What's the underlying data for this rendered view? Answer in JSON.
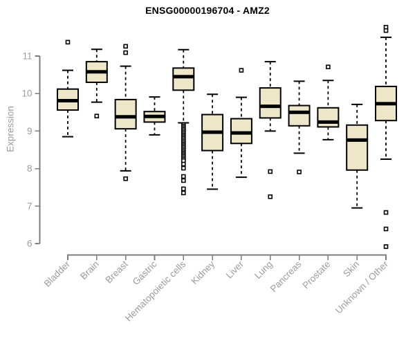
{
  "chart_data": {
    "type": "box",
    "title": "ENSG00000196704 - AMZ2",
    "ylabel": "Expression",
    "xlabel": "",
    "y_ticks": [
      6,
      7,
      8,
      9,
      10,
      11
    ],
    "ylim": [
      5.8,
      11.9
    ],
    "grid": "off",
    "legend": "none",
    "categories": [
      "Bladder",
      "Brain",
      "Breast",
      "Gastric",
      "Hematopoietic cells",
      "Kidney",
      "Liver",
      "Lung",
      "Pancreas",
      "Prostate",
      "Skin",
      "Unknown / Other"
    ],
    "series": [
      {
        "name": "Bladder",
        "whisker_low": 8.85,
        "q1": 9.56,
        "median": 9.81,
        "q3": 10.12,
        "whisker_high": 10.62,
        "outliers": [
          11.37
        ]
      },
      {
        "name": "Brain",
        "whisker_low": 9.77,
        "q1": 10.3,
        "median": 10.58,
        "q3": 10.85,
        "whisker_high": 11.18,
        "outliers": [
          9.4
        ]
      },
      {
        "name": "Breast",
        "whisker_low": 7.94,
        "q1": 9.06,
        "median": 9.38,
        "q3": 9.84,
        "whisker_high": 10.73,
        "outliers": [
          11.26,
          11.09,
          7.73
        ]
      },
      {
        "name": "Gastric",
        "whisker_low": 8.9,
        "q1": 9.24,
        "median": 9.39,
        "q3": 9.52,
        "whisker_high": 9.91,
        "outliers": []
      },
      {
        "name": "Hematopoietic cells",
        "whisker_low": 9.22,
        "q1": 10.09,
        "median": 10.45,
        "q3": 10.68,
        "whisker_high": 11.17,
        "outliers": [
          9.17,
          9.13,
          9.09,
          9.05,
          9.01,
          8.97,
          8.93,
          8.89,
          8.85,
          8.81,
          8.77,
          8.73,
          8.69,
          8.65,
          8.61,
          8.57,
          8.53,
          8.49,
          8.45,
          8.41,
          8.37,
          8.33,
          8.29,
          8.25,
          8.21,
          8.12,
          8.01,
          7.79,
          7.68,
          7.46,
          7.35
        ]
      },
      {
        "name": "Kidney",
        "whisker_low": 7.45,
        "q1": 8.48,
        "median": 8.97,
        "q3": 9.44,
        "whisker_high": 9.98,
        "outliers": []
      },
      {
        "name": "Liver",
        "whisker_low": 7.77,
        "q1": 8.67,
        "median": 8.95,
        "q3": 9.33,
        "whisker_high": 9.9,
        "outliers": [
          10.62
        ]
      },
      {
        "name": "Lung",
        "whisker_low": 9.0,
        "q1": 9.35,
        "median": 9.66,
        "q3": 10.15,
        "whisker_high": 10.85,
        "outliers": [
          7.92,
          7.25
        ]
      },
      {
        "name": "Pancreas",
        "whisker_low": 8.41,
        "q1": 9.14,
        "median": 9.5,
        "q3": 9.68,
        "whisker_high": 10.33,
        "outliers": [
          7.91
        ]
      },
      {
        "name": "Prostate",
        "whisker_low": 8.77,
        "q1": 9.11,
        "median": 9.24,
        "q3": 9.62,
        "whisker_high": 10.35,
        "outliers": [
          10.71
        ]
      },
      {
        "name": "Skin",
        "whisker_low": 6.95,
        "q1": 7.96,
        "median": 8.76,
        "q3": 9.16,
        "whisker_high": 9.71,
        "outliers": []
      },
      {
        "name": "Unknown / Other",
        "whisker_low": 8.25,
        "q1": 9.28,
        "median": 9.73,
        "q3": 10.19,
        "whisker_high": 11.5,
        "outliers": [
          11.77,
          11.68,
          6.83,
          6.39,
          5.92
        ]
      }
    ],
    "colors": {
      "background": "#FFFFFF",
      "box_fill": "#EDE6C8",
      "box_border": "#000000",
      "median": "#000000",
      "whisker": "#000000",
      "outlier": "#000000",
      "axis_line": "#7d7d7d",
      "tick_label": "#9c9c9c",
      "title": "#000000"
    }
  }
}
